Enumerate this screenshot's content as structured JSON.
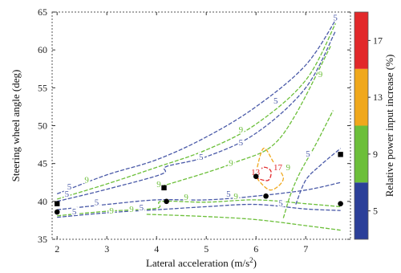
{
  "chart_data": {
    "type": "contour",
    "xlabel": "Lateral acceleration (m/s",
    "xlabel_sup": "2",
    "xlabel_end": ")",
    "ylabel": "Steering wheel angle (deg)",
    "xlim": [
      1.9,
      7.9
    ],
    "ylim": [
      35,
      65
    ],
    "x_ticks": [
      "2",
      "3",
      "4",
      "5",
      "6",
      "7"
    ],
    "y_ticks": [
      "35",
      "40",
      "45",
      "50",
      "55",
      "60",
      "65"
    ],
    "colorbar": {
      "title": "Relative power input increase (%)",
      "ticks": [
        {
          "value": 5,
          "label": "5"
        },
        {
          "value": 9,
          "label": "9"
        },
        {
          "value": 13,
          "label": "13"
        },
        {
          "value": 17,
          "label": "17"
        }
      ],
      "range": [
        3,
        19
      ],
      "bands": [
        {
          "from": 3,
          "to": 7,
          "color": "#2b3f99"
        },
        {
          "from": 7,
          "to": 11,
          "color": "#6cbf3a"
        },
        {
          "from": 11,
          "to": 15,
          "color": "#f0a81c"
        },
        {
          "from": 15,
          "to": 19,
          "color": "#e2282a"
        }
      ]
    },
    "contours": [
      {
        "level": 5,
        "color": "#4a5aa8",
        "points": [
          [
            2.0,
            41.0
          ],
          [
            3.0,
            43.5
          ],
          [
            4.0,
            45.5
          ],
          [
            5.0,
            48.5
          ],
          [
            6.0,
            52.5
          ],
          [
            7.0,
            58.0
          ],
          [
            7.65,
            64.5
          ]
        ]
      },
      {
        "level": 9,
        "color": "#6cbf3a",
        "points": [
          [
            2.0,
            40.3
          ],
          [
            3.0,
            42.3
          ],
          [
            4.0,
            44.5
          ],
          [
            5.0,
            46.8
          ],
          [
            6.0,
            50.2
          ],
          [
            7.0,
            56.0
          ],
          [
            7.6,
            63.5
          ]
        ]
      },
      {
        "level": 5,
        "color": "#4a5aa8",
        "points": [
          [
            2.0,
            40.0
          ],
          [
            3.0,
            41.6
          ],
          [
            4.1,
            43.6
          ],
          [
            4.2,
            44.6
          ],
          [
            5.0,
            45.9
          ],
          [
            6.0,
            49.0
          ],
          [
            7.0,
            55.0
          ],
          [
            7.6,
            62.5
          ]
        ]
      },
      {
        "level": 9,
        "color": "#6cbf3a",
        "points": [
          [
            4.1,
            42.0
          ],
          [
            5.0,
            43.8
          ],
          [
            5.6,
            45.2
          ],
          [
            6.3,
            47.2
          ],
          [
            6.8,
            51.5
          ],
          [
            7.5,
            60.5
          ]
        ]
      },
      {
        "level": 9,
        "color": "#6cbf3a",
        "points": [
          [
            6.55,
            37.8
          ],
          [
            6.7,
            41.0
          ],
          [
            6.9,
            44.0
          ],
          [
            7.2,
            47.5
          ],
          [
            7.55,
            52.0
          ]
        ]
      },
      {
        "level": 5,
        "color": "#4a5aa8",
        "points": [
          [
            6.8,
            39.6
          ],
          [
            7.0,
            42.8
          ],
          [
            7.3,
            44.8
          ],
          [
            7.7,
            47.0
          ]
        ]
      },
      {
        "level": 5,
        "color": "#4a5aa8",
        "points": [
          [
            2.0,
            38.9
          ],
          [
            3.0,
            39.6
          ],
          [
            4.0,
            40.2
          ],
          [
            5.0,
            40.2
          ],
          [
            6.0,
            40.7
          ],
          [
            7.0,
            41.5
          ],
          [
            7.7,
            42.5
          ]
        ]
      },
      {
        "level": 9,
        "color": "#6cbf3a",
        "points": [
          [
            2.0,
            38.1
          ],
          [
            3.0,
            38.7
          ],
          [
            4.0,
            39.1
          ],
          [
            4.1,
            40.0
          ],
          [
            5.0,
            39.9
          ],
          [
            6.0,
            40.2
          ],
          [
            7.0,
            39.7
          ],
          [
            7.7,
            39.3
          ]
        ]
      },
      {
        "level": 5,
        "color": "#4a5aa8",
        "points": [
          [
            2.0,
            37.9
          ],
          [
            3.0,
            38.5
          ],
          [
            4.0,
            38.9
          ],
          [
            5.0,
            39.3
          ],
          [
            6.0,
            39.6
          ],
          [
            7.0,
            39.0
          ],
          [
            7.7,
            38.8
          ]
        ]
      },
      {
        "level": 9,
        "color": "#6cbf3a",
        "points": [
          [
            3.8,
            38.3
          ],
          [
            5.0,
            38.0
          ],
          [
            6.0,
            37.6
          ],
          [
            7.0,
            36.8
          ],
          [
            7.7,
            36.2
          ]
        ]
      },
      {
        "level": 17,
        "color": "#f0a81c",
        "points": [
          [
            6.0,
            43.8
          ],
          [
            6.15,
            47.0
          ],
          [
            6.35,
            45.2
          ],
          [
            6.55,
            43.0
          ],
          [
            6.3,
            41.5
          ],
          [
            6.05,
            42.8
          ],
          [
            6.0,
            43.8
          ]
        ]
      },
      {
        "level": 13,
        "color": "#e2282a",
        "points": [
          [
            6.0,
            43.5
          ],
          [
            6.15,
            44.5
          ],
          [
            6.3,
            44.0
          ],
          [
            6.25,
            42.8
          ],
          [
            6.05,
            43.0
          ],
          [
            6.0,
            43.5
          ]
        ]
      }
    ],
    "contour_labels": [
      {
        "text": "5",
        "x": 2.25,
        "y": 41.7,
        "color": "#4a5aa8"
      },
      {
        "text": "9",
        "x": 2.6,
        "y": 42.6,
        "color": "#6cbf3a"
      },
      {
        "text": "5",
        "x": 2.2,
        "y": 40.7,
        "color": "#4a5aa8"
      },
      {
        "text": "9",
        "x": 5.7,
        "y": 49.2,
        "color": "#6cbf3a"
      },
      {
        "text": "5",
        "x": 5.7,
        "y": 47.5,
        "color": "#4a5aa8"
      },
      {
        "text": "9",
        "x": 5.5,
        "y": 44.8,
        "color": "#6cbf3a"
      },
      {
        "text": "5",
        "x": 4.9,
        "y": 45.6,
        "color": "#4a5aa8"
      },
      {
        "text": "5",
        "x": 6.4,
        "y": 53.0,
        "color": "#4a5aa8"
      },
      {
        "text": "9",
        "x": 7.3,
        "y": 56.5,
        "color": "#6cbf3a"
      },
      {
        "text": "5",
        "x": 7.6,
        "y": 64.0,
        "color": "#4a5aa8"
      },
      {
        "text": "5",
        "x": 7.05,
        "y": 46.0,
        "color": "#4a5aa8"
      },
      {
        "text": "9",
        "x": 6.65,
        "y": 44.2,
        "color": "#6cbf3a"
      },
      {
        "text": "9",
        "x": 4.05,
        "y": 42.0,
        "color": "#6cbf3a"
      },
      {
        "text": "9",
        "x": 4.6,
        "y": 40.3,
        "color": "#6cbf3a"
      },
      {
        "text": "5",
        "x": 2.8,
        "y": 39.6,
        "color": "#4a5aa8"
      },
      {
        "text": "5",
        "x": 5.45,
        "y": 40.7,
        "color": "#4a5aa8"
      },
      {
        "text": "9",
        "x": 5.6,
        "y": 40.4,
        "color": "#6cbf3a"
      },
      {
        "text": "9",
        "x": 3.1,
        "y": 38.5,
        "color": "#6cbf3a"
      },
      {
        "text": "5",
        "x": 2.35,
        "y": 38.4,
        "color": "#4a5aa8"
      },
      {
        "text": "9",
        "x": 3.5,
        "y": 38.7,
        "color": "#6cbf3a"
      },
      {
        "text": "5",
        "x": 3.7,
        "y": 38.9,
        "color": "#4a5aa8"
      },
      {
        "text": "5",
        "x": 6.5,
        "y": 39.5,
        "color": "#4a5aa8"
      },
      {
        "text": "13",
        "x": 5.95,
        "y": 43.6,
        "color": "#e2282a"
      },
      {
        "text": "17",
        "x": 6.4,
        "y": 44.2,
        "color": "#e2282a"
      }
    ],
    "markers": [
      {
        "shape": "square",
        "x": 2.0,
        "y": 39.7
      },
      {
        "shape": "circle",
        "x": 2.0,
        "y": 38.6
      },
      {
        "shape": "square",
        "x": 4.15,
        "y": 41.8
      },
      {
        "shape": "circle",
        "x": 4.2,
        "y": 40.0
      },
      {
        "shape": "circle",
        "x": 6.0,
        "y": 43.3
      },
      {
        "shape": "circle",
        "x": 6.2,
        "y": 40.7
      },
      {
        "shape": "square",
        "x": 7.7,
        "y": 46.2
      },
      {
        "shape": "circle",
        "x": 7.7,
        "y": 39.7
      }
    ]
  }
}
